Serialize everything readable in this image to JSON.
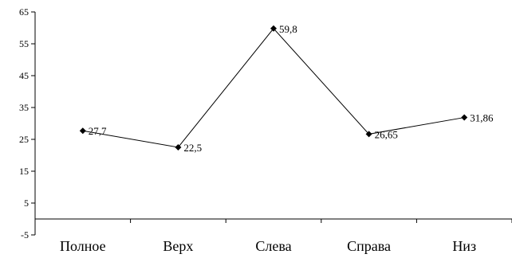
{
  "chart_data": {
    "type": "line",
    "categories": [
      "Полное",
      "Верх",
      "Слева",
      "Справа",
      "Низ"
    ],
    "series": [
      {
        "values": [
          27.7,
          22.5,
          59.8,
          26.65,
          31.86
        ]
      }
    ],
    "data_labels": [
      "27,7",
      "22,5",
      "59,8",
      "26,65",
      "31,86"
    ],
    "y_ticks": [
      -5,
      5,
      15,
      25,
      35,
      45,
      55,
      65
    ],
    "ylim": [
      -5,
      65
    ],
    "grid": false,
    "legend": "none",
    "marker": "diamond",
    "line_color": "#000000"
  }
}
